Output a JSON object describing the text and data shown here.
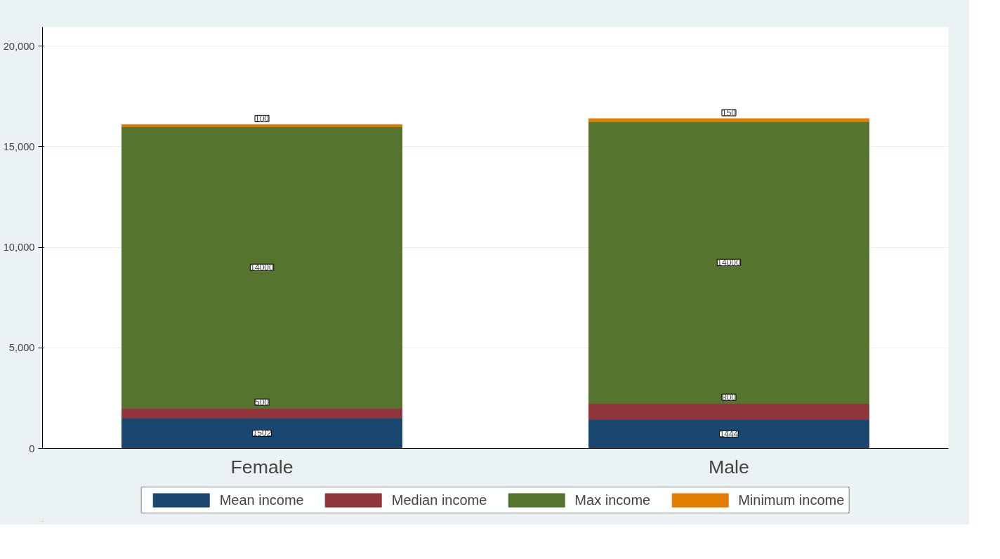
{
  "chart_data": {
    "type": "bar",
    "stacked": true,
    "categories": [
      "Female",
      "Male"
    ],
    "series": [
      {
        "name": "Mean income",
        "color": "#1a476f",
        "values": [
          1502,
          1444
        ]
      },
      {
        "name": "Median income",
        "color": "#90353b",
        "values": [
          500,
          800
        ]
      },
      {
        "name": "Max income",
        "color": "#55752f",
        "values": [
          14000,
          14000
        ]
      },
      {
        "name": "Minimum income",
        "color": "#e37e00",
        "values": [
          100,
          150
        ]
      }
    ],
    "ylim": [
      0,
      20950
    ],
    "yticks": [
      {
        "value": 0,
        "label": "0"
      },
      {
        "value": 5000,
        "label": "5,000"
      },
      {
        "value": 10000,
        "label": "10,000"
      },
      {
        "value": 15000,
        "label": "15,000"
      },
      {
        "value": 20000,
        "label": "20,000"
      }
    ],
    "grid": "y",
    "legend": "bottom",
    "data_labels": true
  }
}
